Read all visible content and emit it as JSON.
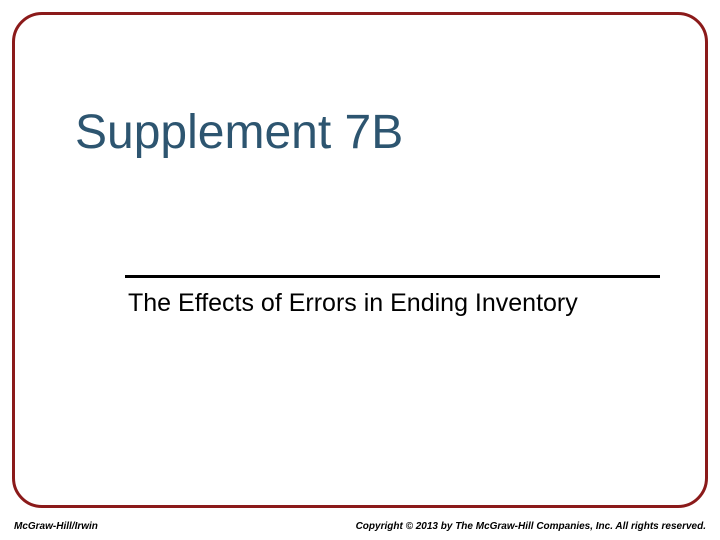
{
  "slide": {
    "title": "Supplement 7B",
    "subtitle": "The Effects of Errors in Ending Inventory",
    "footer_left": "McGraw-Hill/Irwin",
    "footer_right": "Copyright © 2013 by The McGraw-Hill Companies, Inc.  All rights reserved."
  },
  "style": {
    "border_color": "#8b1a1a",
    "title_color": "#2d5570",
    "subtitle_color": "#000000",
    "divider_color": "#000000",
    "background_color": "#ffffff",
    "title_fontsize": 48,
    "subtitle_fontsize": 25,
    "footer_fontsize": 10
  }
}
